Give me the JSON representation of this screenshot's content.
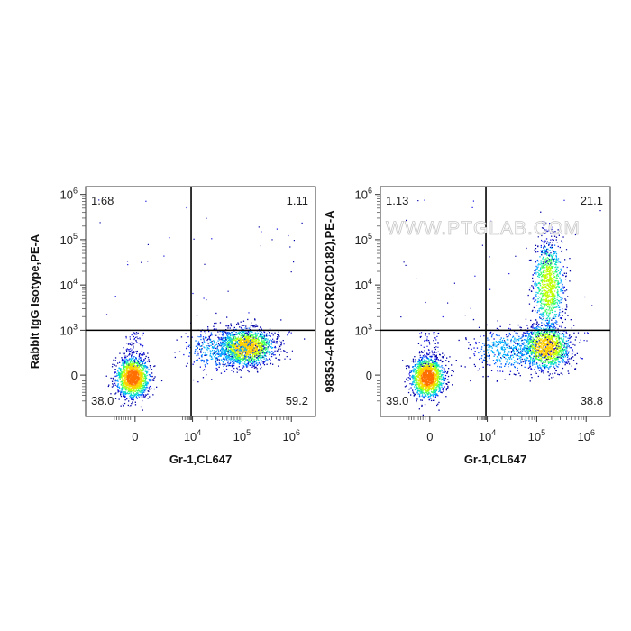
{
  "watermark": "WWW.PTGLAB.COM",
  "chart_data": [
    {
      "type": "scatter",
      "subtype": "flow-cytometry-density-dot-plot",
      "title": "",
      "xlabel": "Gr-1,CL647",
      "ylabel": "Rabbit IgG Isotype,PE-A",
      "x_scale": "biexponential",
      "y_scale": "biexponential",
      "x_ticks": [
        "0",
        "10^4",
        "10^5",
        "10^6"
      ],
      "y_ticks": [
        "0",
        "10^3",
        "10^4",
        "10^5",
        "10^6"
      ],
      "gate": {
        "x": 8000,
        "y": 1000
      },
      "quadrants": {
        "upper_left": "1.68",
        "upper_right": "1.11",
        "lower_left": "38.0",
        "lower_right": "59.2"
      },
      "populations": [
        {
          "name": "Gr-1 negative",
          "center": [
            0,
            0
          ],
          "percent": 38.0
        },
        {
          "name": "Gr-1 positive",
          "center": [
            140000,
            100
          ],
          "percent": 59.2
        }
      ]
    },
    {
      "type": "scatter",
      "subtype": "flow-cytometry-density-dot-plot",
      "title": "",
      "xlabel": "Gr-1,CL647",
      "ylabel": "98353-4-RR CXCR2(CD182),PE-A",
      "x_scale": "biexponential",
      "y_scale": "biexponential",
      "x_ticks": [
        "0",
        "10^4",
        "10^5",
        "10^6"
      ],
      "y_ticks": [
        "0",
        "10^3",
        "10^4",
        "10^5",
        "10^6"
      ],
      "gate": {
        "x": 8000,
        "y": 1000
      },
      "quadrants": {
        "upper_left": "1.13",
        "upper_right": "21.1",
        "lower_left": "39.0",
        "lower_right": "38.8"
      },
      "populations": [
        {
          "name": "Gr-1 negative",
          "center": [
            0,
            0
          ],
          "percent": 39.0
        },
        {
          "name": "Gr-1 positive CXCR2 low",
          "center": [
            150000,
            100
          ],
          "percent": 38.8
        },
        {
          "name": "Gr-1 positive CXCR2 high",
          "center": [
            160000,
            12000
          ],
          "percent": 21.1
        }
      ]
    }
  ]
}
